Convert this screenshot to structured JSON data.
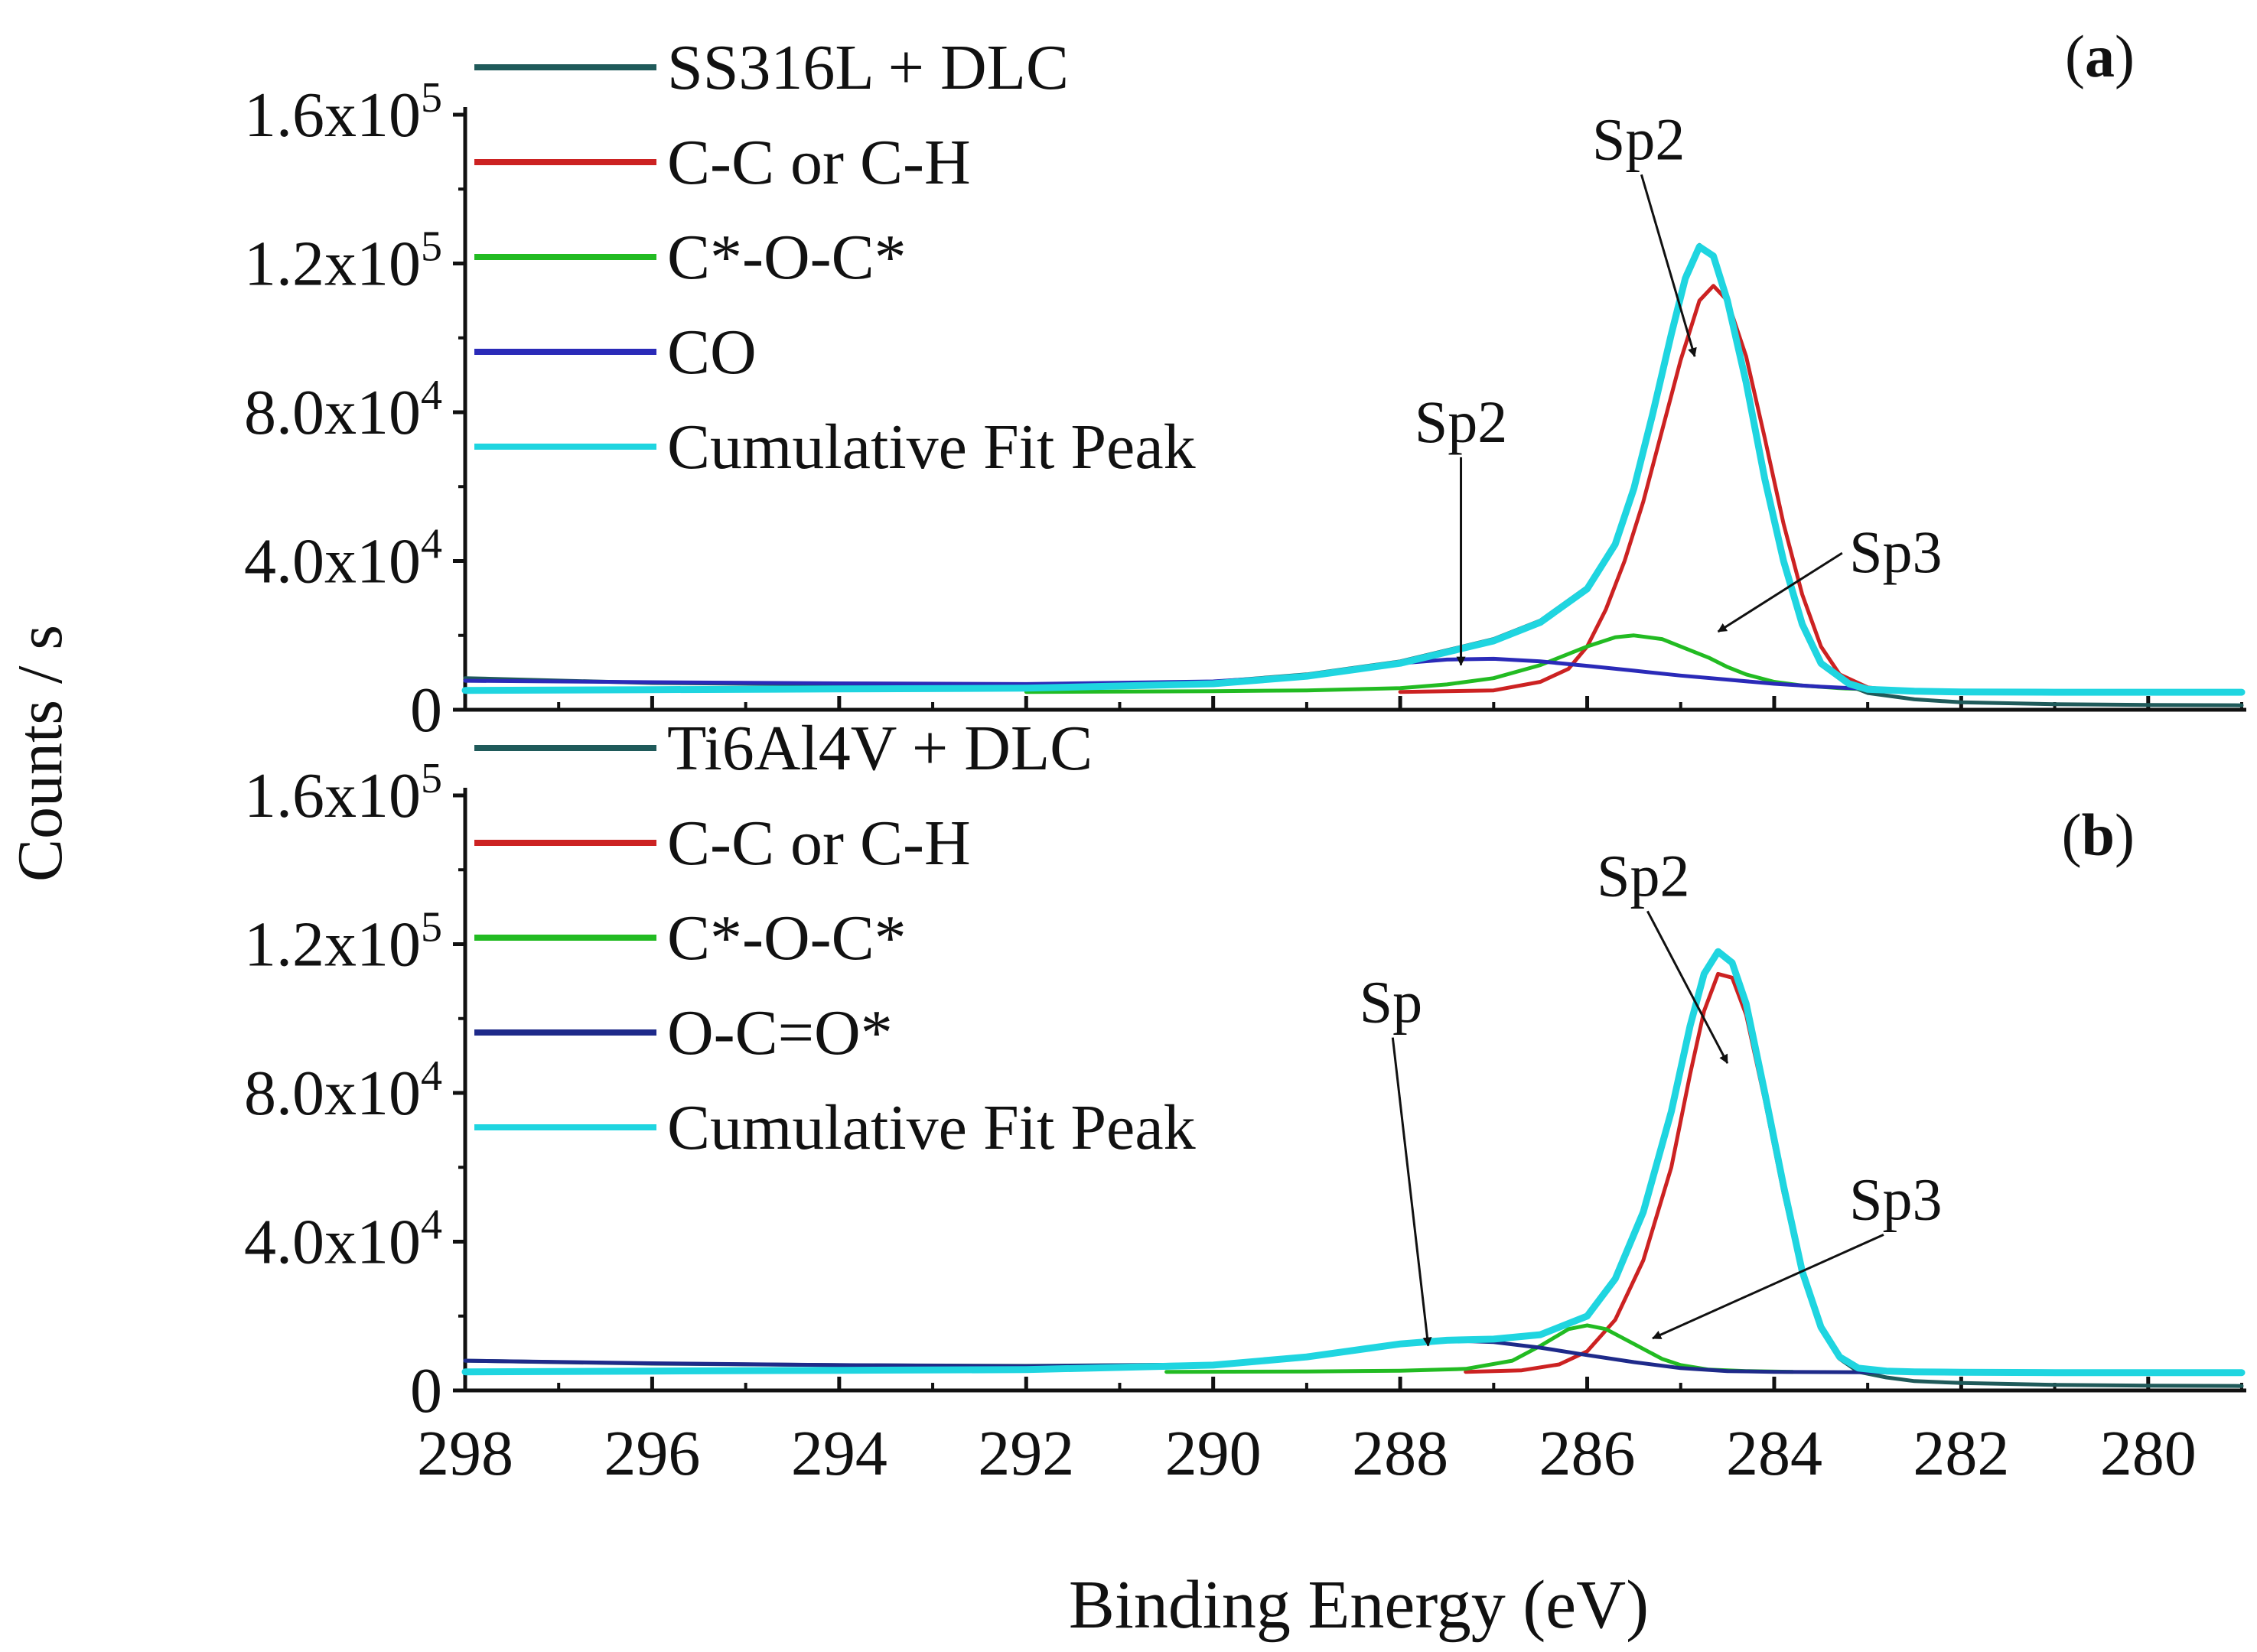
{
  "chart_data": {
    "type": "line",
    "y_axis_label": "Counts / s",
    "x_axis_label": "Binding Energy (eV)",
    "x_range": [
      298,
      279
    ],
    "x_ticks": [
      {
        "value": 298,
        "label": "298"
      },
      {
        "value": 296,
        "label": "296"
      },
      {
        "value": 294,
        "label": "294"
      },
      {
        "value": 292,
        "label": "292"
      },
      {
        "value": 290,
        "label": "290"
      },
      {
        "value": 288,
        "label": "288"
      },
      {
        "value": 286,
        "label": "286"
      },
      {
        "value": 284,
        "label": "284"
      },
      {
        "value": 282,
        "label": "282"
      },
      {
        "value": 280,
        "label": "280"
      }
    ],
    "panels": [
      {
        "id": "a",
        "panel_label": "a",
        "y_range": [
          0,
          160000
        ],
        "y_ticks": [
          {
            "value": 0,
            "mant": "0",
            "exp": ""
          },
          {
            "value": 40000,
            "mant": "4.0x10",
            "exp": "4"
          },
          {
            "value": 80000,
            "mant": "8.0x10",
            "exp": "4"
          },
          {
            "value": 120000,
            "mant": "1.2x10",
            "exp": "5"
          },
          {
            "value": 160000,
            "mant": "1.6x10",
            "exp": "5"
          }
        ],
        "legend": [
          {
            "label": "SS316L + DLC",
            "color": "#1f5a5a"
          },
          {
            "label": "C-C or C-H",
            "color": "#cc2222"
          },
          {
            "label": "C*-O-C*",
            "color": "#22bb22"
          },
          {
            "label": "CO",
            "color": "#2a2ab8"
          },
          {
            "label": "Cumulative Fit Peak",
            "color": "#1fd5e0"
          }
        ],
        "annotations": [
          {
            "text": "Sp2",
            "label_x": 285.45,
            "label_y": 148000,
            "arrow_x": 284.85,
            "arrow_y": 95000
          },
          {
            "text": "Sp2",
            "label_x": 287.35,
            "label_y": 72000,
            "arrow_x": 287.35,
            "arrow_y": 12000
          },
          {
            "text": "Sp3",
            "label_x": 282.7,
            "label_y": 37000,
            "arrow_x": 284.6,
            "arrow_y": 21000
          }
        ],
        "series": [
          {
            "name": "SS316L + DLC",
            "color": "#1f5a5a",
            "width": 5,
            "x": [
              298,
              296,
              294,
              292,
              290,
              289,
              288,
              287.5,
              287,
              286.5,
              286,
              285.7,
              285.5,
              285.3,
              285.1,
              284.95,
              284.8,
              284.65,
              284.5,
              284.3,
              284.1,
              283.9,
              283.7,
              283.5,
              283.2,
              283,
              282.5,
              282,
              281,
              280,
              279
            ],
            "y": [
              8500,
              7200,
              6800,
              6600,
              7500,
              9500,
              13000,
              16000,
              19000,
              24000,
              33000,
              45000,
              60000,
              80000,
              102000,
              117000,
              125000,
              122000,
              110000,
              88000,
              62000,
              40000,
              23000,
              12000,
              6500,
              4500,
              2800,
              2000,
              1500,
              1300,
              1200
            ]
          },
          {
            "name": "C-C or C-H",
            "color": "#cc2222",
            "width": 5,
            "x": [
              288,
              287,
              286.5,
              286.2,
              286,
              285.8,
              285.6,
              285.4,
              285.2,
              285,
              284.8,
              284.65,
              284.5,
              284.3,
              284.1,
              283.9,
              283.7,
              283.5,
              283.3,
              283,
              282.6
            ],
            "y": [
              4800,
              5200,
              7500,
              11000,
              17000,
              27000,
              40000,
              56000,
              75000,
              94000,
              110000,
              114000,
              110000,
              95000,
              73000,
              50000,
              31000,
              17000,
              9500,
              6000,
              5000
            ]
          },
          {
            "name": "C*-O-C*",
            "color": "#22bb22",
            "width": 5,
            "x": [
              292,
              290,
              289,
              288,
              287.5,
              287,
              286.5,
              286,
              285.7,
              285.5,
              285.2,
              285,
              284.7,
              284.5,
              284.3,
              284,
              283.7,
              283.3,
              283,
              282.5
            ],
            "y": [
              4800,
              5000,
              5200,
              5800,
              6800,
              8500,
              12000,
              17000,
              19500,
              20000,
              19000,
              17000,
              14000,
              11500,
              9500,
              7500,
              6500,
              5800,
              5500,
              5200
            ]
          },
          {
            "name": "CO",
            "color": "#2a2ab8",
            "width": 5,
            "x": [
              298,
              296,
              294,
              292,
              290,
              289,
              288.5,
              288,
              287.5,
              287,
              286.5,
              286,
              285.5,
              285,
              284.5,
              284,
              283.5,
              283,
              282.5,
              282,
              281,
              280,
              279
            ],
            "y": [
              7800,
              7400,
              7100,
              6900,
              7600,
              9200,
              10800,
              12500,
              13500,
              13700,
              13000,
              11800,
              10500,
              9200,
              8100,
              7000,
              6200,
              5600,
              5200,
              5000,
              4800,
              4700,
              4700
            ]
          },
          {
            "name": "Cumulative Fit Peak",
            "color": "#1fd5e0",
            "width": 9,
            "x": [
              298,
              296,
              294,
              292,
              290,
              289,
              288,
              287.5,
              287,
              286.5,
              286,
              285.7,
              285.5,
              285.3,
              285.1,
              284.95,
              284.8,
              284.65,
              284.5,
              284.3,
              284.1,
              283.9,
              283.7,
              283.5,
              283.2,
              283,
              282.5,
              282,
              281,
              280,
              279
            ],
            "y": [
              5200,
              5400,
              5600,
              5800,
              7000,
              9000,
              12500,
              15500,
              18500,
              23500,
              32500,
              44500,
              59500,
              79500,
              101000,
              116000,
              124500,
              122000,
              110000,
              88000,
              62000,
              40000,
              23000,
              12500,
              7000,
              5500,
              5000,
              4800,
              4700,
              4700,
              4700
            ]
          }
        ]
      },
      {
        "id": "b",
        "panel_label": "b",
        "y_range": [
          0,
          160000
        ],
        "y_ticks": [
          {
            "value": 0,
            "mant": "0",
            "exp": ""
          },
          {
            "value": 40000,
            "mant": "4.0x10",
            "exp": "4"
          },
          {
            "value": 80000,
            "mant": "8.0x10",
            "exp": "4"
          },
          {
            "value": 120000,
            "mant": "1.2x10",
            "exp": "5"
          },
          {
            "value": 160000,
            "mant": "1.6x10",
            "exp": "5"
          }
        ],
        "legend": [
          {
            "label": "Ti6Al4V + DLC",
            "color": "#1f5a5a"
          },
          {
            "label": "C-C or C-H",
            "color": "#cc2222"
          },
          {
            "label": "C*-O-C*",
            "color": "#22bb22"
          },
          {
            "label": "O-C=O*",
            "color": "#1e2a8a"
          },
          {
            "label": "Cumulative Fit Peak",
            "color": "#1fd5e0"
          }
        ],
        "annotations": [
          {
            "text": "Sp2",
            "label_x": 285.4,
            "label_y": 133000,
            "arrow_x": 284.5,
            "arrow_y": 88000
          },
          {
            "text": "Sp",
            "label_x": 288.1,
            "label_y": 99000,
            "arrow_x": 287.7,
            "arrow_y": 12000
          },
          {
            "text": "Sp3",
            "label_x": 282.7,
            "label_y": 46000,
            "arrow_x": 285.3,
            "arrow_y": 14000
          }
        ],
        "series": [
          {
            "name": "Ti6Al4V + DLC",
            "color": "#1f5a5a",
            "width": 5,
            "x": [
              298,
              296,
              294,
              292,
              290,
              289,
              288,
              287.5,
              287,
              286.5,
              286,
              285.7,
              285.4,
              285.1,
              284.9,
              284.75,
              284.6,
              284.45,
              284.3,
              284.1,
              283.9,
              283.7,
              283.5,
              283.3,
              283.1,
              282.8,
              282.5,
              282,
              281,
              280,
              279
            ],
            "y": [
              8000,
              7200,
              6800,
              6600,
              7000,
              9000,
              12500,
              13500,
              13800,
              15000,
              20000,
              30000,
              48000,
              75000,
              98000,
              112000,
              118000,
              115000,
              104000,
              80000,
              55000,
              32000,
              17000,
              8500,
              5000,
              3500,
              2500,
              2000,
              1500,
              1300,
              1200
            ]
          },
          {
            "name": "C-C or C-H",
            "color": "#cc2222",
            "width": 5,
            "x": [
              287.3,
              286.7,
              286.3,
              286,
              285.7,
              285.4,
              285.1,
              284.9,
              284.75,
              284.6,
              284.45,
              284.3,
              284.1,
              283.9,
              283.7,
              283.5,
              283.3,
              283.1,
              282.8
            ],
            "y": [
              5000,
              5400,
              7000,
              10500,
              19000,
              35000,
              60000,
              85000,
              102000,
              112000,
              111000,
              101000,
              78000,
              53000,
              31000,
              16500,
              8500,
              6000,
              5000
            ]
          },
          {
            "name": "C*-O-C*",
            "color": "#22bb22",
            "width": 5,
            "x": [
              290.5,
              289,
              288,
              287.3,
              286.8,
              286.5,
              286.2,
              286,
              285.8,
              285.5,
              285.2,
              285,
              284.7,
              284.3,
              283.8
            ],
            "y": [
              5000,
              5100,
              5300,
              5800,
              8000,
              12000,
              16500,
              17500,
              16500,
              12500,
              8500,
              6800,
              5600,
              5200,
              5000
            ]
          },
          {
            "name": "O-C=O*",
            "color": "#1e2a8a",
            "width": 5,
            "x": [
              298,
              296,
              294,
              292,
              290,
              289,
              288.5,
              288,
              287.5,
              287,
              286.5,
              286,
              285.5,
              285,
              284.5,
              284,
              283,
              282,
              281,
              280,
              279
            ],
            "y": [
              8000,
              7300,
              6800,
              6500,
              7000,
              8800,
              10800,
              12700,
              13500,
              13000,
              11500,
              9500,
              7600,
              6000,
              5200,
              5000,
              4900,
              4800,
              4800,
              4800,
              4800
            ]
          },
          {
            "name": "Cumulative Fit Peak",
            "color": "#1fd5e0",
            "width": 9,
            "x": [
              298,
              296,
              294,
              292,
              290,
              289,
              288,
              287.5,
              287,
              286.5,
              286,
              285.7,
              285.4,
              285.1,
              284.9,
              284.75,
              284.6,
              284.45,
              284.3,
              284.1,
              283.9,
              283.7,
              283.5,
              283.3,
              283.1,
              282.8,
              282.5,
              282,
              281,
              280,
              279
            ],
            "y": [
              5000,
              5200,
              5400,
              5600,
              6800,
              9000,
              12500,
              13500,
              13800,
              15000,
              20000,
              30000,
              48000,
              75000,
              98000,
              112000,
              118000,
              115000,
              104000,
              80000,
              55000,
              32000,
              17000,
              9000,
              6000,
              5200,
              5000,
              4900,
              4800,
              4800,
              4800
            ]
          }
        ]
      }
    ]
  }
}
